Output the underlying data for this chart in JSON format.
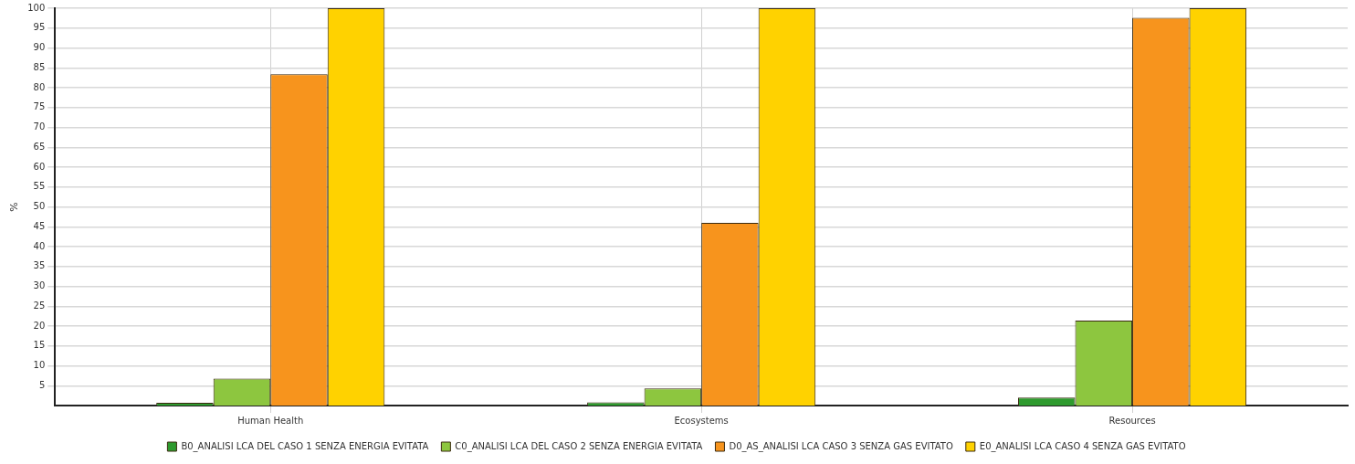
{
  "chart_data": {
    "type": "bar",
    "ylabel": "%",
    "categories": [
      "Human Health",
      "Ecosystems",
      "Resources"
    ],
    "series": [
      {
        "name": "B0_ANALISI LCA DEL CASO 1 SENZA ENERGIA EVITATA",
        "color": "#2e9a2e",
        "values": [
          0.7,
          0.8,
          2.0
        ]
      },
      {
        "name": "C0_ANALISI LCA DEL CASO 2 SENZA ENERGIA EVITATA",
        "color": "#8dc63f",
        "values": [
          6.8,
          4.3,
          21.4
        ]
      },
      {
        "name": "D0_AS_ANALISI LCA CASO 3 SENZA GAS EVITATO",
        "color": "#f7941d",
        "values": [
          83.4,
          46,
          97.6
        ]
      },
      {
        "name": "E0_ANALISI LCA CASO 4 SENZA GAS EVITATO",
        "color": "#ffd200",
        "values": [
          100,
          100,
          100
        ]
      }
    ],
    "ylim": [
      0,
      100
    ],
    "yticks": [
      5,
      10,
      15,
      20,
      25,
      30,
      35,
      40,
      45,
      50,
      55,
      60,
      65,
      70,
      75,
      80,
      85,
      90,
      95,
      100
    ],
    "grid": true,
    "legend": "bottom"
  }
}
